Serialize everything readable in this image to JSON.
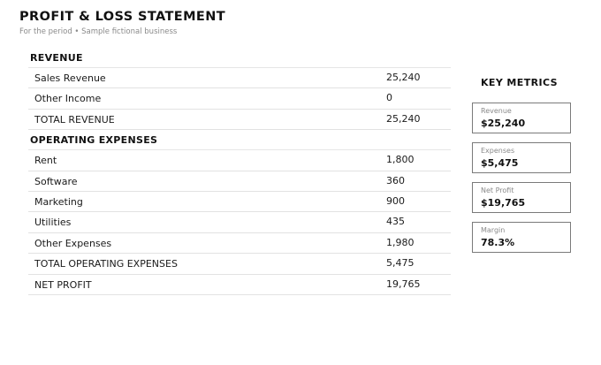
{
  "header": {
    "title": "PROFIT & LOSS STATEMENT",
    "subtitle": "For the period • Sample fictional business"
  },
  "sections": [
    {
      "title": "REVENUE",
      "rows": [
        {
          "label": "Sales Revenue",
          "value": "25,240"
        },
        {
          "label": "Other Income",
          "value": "0"
        },
        {
          "label": "TOTAL REVENUE",
          "value": "25,240"
        }
      ]
    },
    {
      "title": "OPERATING EXPENSES",
      "rows": [
        {
          "label": "Rent",
          "value": "1,800"
        },
        {
          "label": "Software",
          "value": "360"
        },
        {
          "label": "Marketing",
          "value": "900"
        },
        {
          "label": "Utilities",
          "value": "435"
        },
        {
          "label": "Other Expenses",
          "value": "1,980"
        },
        {
          "label": "TOTAL OPERATING EXPENSES",
          "value": "5,475"
        },
        {
          "label": "NET PROFIT",
          "value": "19,765"
        }
      ]
    }
  ],
  "metrics": {
    "title": "KEY METRICS",
    "cards": [
      {
        "label": "Revenue",
        "value": "$25,240"
      },
      {
        "label": "Expenses",
        "value": "$5,475"
      },
      {
        "label": "Net Profit",
        "value": "$19,765"
      },
      {
        "label": "Margin",
        "value": "78.3%"
      }
    ]
  }
}
